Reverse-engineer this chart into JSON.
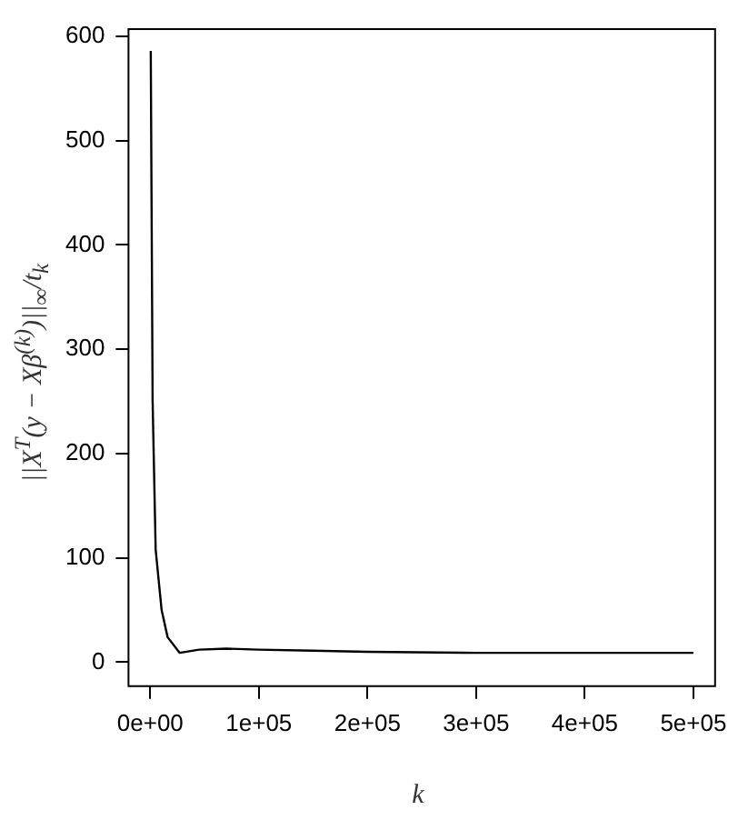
{
  "chart_data": {
    "type": "line",
    "xlabel": "k",
    "ylabel": "||X$^{T}$(y − Xβ$^{(k)}$)||$_{∞}$/t$_{k}$",
    "x": [
      500,
      2200,
      5000,
      10500,
      16000,
      27000,
      45000,
      70000,
      100000,
      150000,
      200000,
      300000,
      400000,
      500000
    ],
    "series": [
      {
        "color": "#000000",
        "values": [
          586,
          251,
          108,
          50,
          24,
          9,
          12,
          13,
          12,
          11,
          10,
          9,
          9,
          9
        ]
      }
    ],
    "xlim": [
      -20000,
      520000
    ],
    "ylim": [
      -23,
      607
    ],
    "xticks": [
      {
        "value": 0,
        "label": "0e+00"
      },
      {
        "value": 100000,
        "label": "1e+05"
      },
      {
        "value": 200000,
        "label": "2e+05"
      },
      {
        "value": 300000,
        "label": "3e+05"
      },
      {
        "value": 400000,
        "label": "4e+05"
      },
      {
        "value": 500000,
        "label": "5e+05"
      }
    ],
    "yticks": [
      0,
      100,
      200,
      300,
      400,
      500,
      600
    ],
    "marker": "none",
    "line_style": "solid"
  }
}
